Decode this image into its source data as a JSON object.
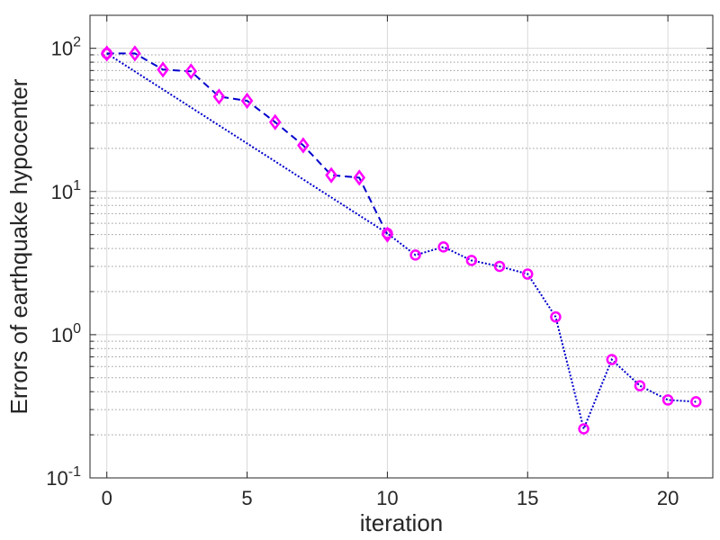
{
  "chart_data": {
    "type": "line",
    "xlabel": "iteration",
    "ylabel": "Errors of earthquake hypocenter",
    "xlim": [
      -0.6,
      21.6
    ],
    "ylim": [
      0.1,
      170
    ],
    "yscale": "log",
    "grid": true,
    "x_ticks": [
      0,
      5,
      10,
      15,
      20
    ],
    "y_ticks": [
      {
        "base": "10",
        "exp": "-1",
        "value": 0.1
      },
      {
        "base": "10",
        "exp": "0",
        "value": 1
      },
      {
        "base": "10",
        "exp": "1",
        "value": 10
      },
      {
        "base": "10",
        "exp": "2",
        "value": 100
      }
    ],
    "line_color": "#0000cc",
    "marker_color": "#ff00ff",
    "series": [
      {
        "marker": "diamond",
        "line_style": "dashed",
        "x": [
          0,
          1,
          2,
          3,
          4,
          5,
          6,
          7,
          8,
          9,
          10
        ],
        "y": [
          92,
          92,
          71,
          69,
          46,
          43,
          30.5,
          21,
          13,
          12.5,
          5
        ]
      },
      {
        "marker": "circle",
        "line_style": "dotted",
        "x": [
          0,
          10,
          11,
          12,
          13,
          14,
          15,
          16,
          17,
          18,
          19,
          20,
          21
        ],
        "y": [
          92,
          5.1,
          3.6,
          4.1,
          3.3,
          3.0,
          2.65,
          1.33,
          0.22,
          0.67,
          0.44,
          0.35,
          0.34
        ]
      }
    ]
  }
}
